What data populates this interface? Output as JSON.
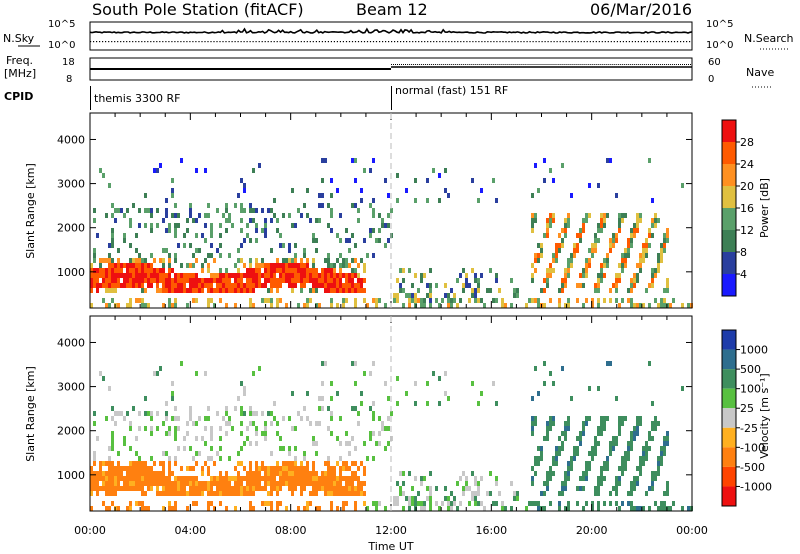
{
  "header": {
    "station": "South Pole Station (fitACF)",
    "beam": "Beam 12",
    "date": "06/Mar/2016"
  },
  "control_panels": {
    "nsky_label": "N.Sky",
    "nsky_ticks": [
      "10^5",
      "10^0"
    ],
    "nsearch_label": "N.Search",
    "nsearch_ticks": [
      "10^5",
      "10^0"
    ],
    "freq_label_1": "Freq.",
    "freq_label_2": "[MHz]",
    "freq_ticks": [
      "18",
      "8"
    ],
    "nave_label": "Nave",
    "nave_ticks": [
      "60",
      "0"
    ],
    "cpid_label": "CPID",
    "cpid_segments": [
      {
        "label": "themis 3300 RF",
        "start_hour": 0
      },
      {
        "label": "normal (fast) 151 RF",
        "start_hour": 12
      }
    ]
  },
  "chart_data": [
    {
      "type": "heatmap",
      "name": "power",
      "ylabel": "Slant Range [km]",
      "yticks": [
        1000,
        2000,
        3000,
        4000
      ],
      "ylim": [
        180,
        4600
      ],
      "xlim": [
        0,
        24
      ],
      "colorbar": {
        "label": "Power [dB]",
        "ticks": [
          "4",
          "8",
          "12",
          "16",
          "20",
          "24",
          "28"
        ],
        "range": [
          0,
          30
        ],
        "colors": [
          "#1a1aff",
          "#2a3f9e",
          "#3d7f55",
          "#5aa06a",
          "#e0c040",
          "#ff9020",
          "#ff5a00",
          "#ee1010"
        ]
      }
    },
    {
      "type": "heatmap",
      "name": "velocity",
      "ylabel": "Slant Range [km]",
      "yticks": [
        1000,
        2000,
        3000,
        4000
      ],
      "ylim": [
        180,
        4600
      ],
      "xlim": [
        0,
        24
      ],
      "xlabel": "Time UT",
      "xticks": [
        "00:00",
        "04:00",
        "08:00",
        "12:00",
        "16:00",
        "20:00",
        "00:00"
      ],
      "colorbar": {
        "label": "Velocity [m s⁻¹]",
        "ticks": [
          "1000",
          "500",
          "100",
          "25",
          "-25",
          "-100",
          "-500",
          "-1000"
        ],
        "colors": [
          "#1e3caa",
          "#2e6e8e",
          "#3e8e5e",
          "#58c040",
          "#c8c8c8",
          "#ffb020",
          "#ff8010",
          "#ff4400",
          "#ee1010"
        ]
      }
    }
  ]
}
